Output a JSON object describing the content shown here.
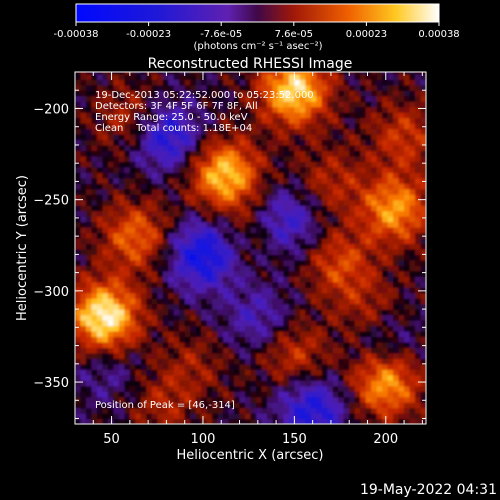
{
  "chart_data": {
    "type": "heatmap",
    "title": "Reconstructed RHESSI Image",
    "xlabel": "Heliocentric X (arcsec)",
    "ylabel": "Heliocentric Y (arcsec)",
    "xlim": [
      30,
      222
    ],
    "ylim": [
      -373,
      -180
    ],
    "x_ticks": [
      50,
      100,
      150,
      200
    ],
    "y_ticks": [
      -200,
      -250,
      -300,
      -350
    ],
    "colorbar": {
      "range": [
        -0.00038,
        0.00038
      ],
      "ticks": [
        "-0.00038",
        "-0.00023",
        "-7.6e-05",
        "7.6e-05",
        "0.00023",
        "0.00038"
      ],
      "label": "(photons cm⁻² s⁻¹ asec⁻²)"
    },
    "annotations": [
      "19-Dec-2013 05:22:52.000 to 05:23:52.000",
      "Detectors: 3F 4F 5F 6F 7F 8F, All",
      "Energy Range: 25.0 - 50.0 keV",
      "Clean    Total counts: 1.18E+04"
    ],
    "peak_text": "Position of Peak = [46,-314]",
    "sources": [
      {
        "x": 46,
        "y": -314,
        "value": 0.00038
      },
      {
        "x": 150,
        "y": -190,
        "value": 0.00034
      },
      {
        "x": 112,
        "y": -236,
        "value": 0.00031
      },
      {
        "x": 63,
        "y": -270,
        "value": 0.0002
      },
      {
        "x": 205,
        "y": -255,
        "value": 0.00026
      },
      {
        "x": 200,
        "y": -350,
        "value": 0.00028
      },
      {
        "x": 175,
        "y": -285,
        "value": 0.00016
      },
      {
        "x": 150,
        "y": -335,
        "value": 0.00014
      },
      {
        "x": 210,
        "y": -215,
        "value": 0.00014
      },
      {
        "x": 60,
        "y": -205,
        "value": 0.00012
      },
      {
        "x": 78,
        "y": -362,
        "value": 0.0001
      },
      {
        "x": 128,
        "y": -268,
        "value": 8e-05
      },
      {
        "x": 95,
        "y": -340,
        "value": 8e-05
      },
      {
        "x": 170,
        "y": -240,
        "value": 0.00011
      },
      {
        "x": 190,
        "y": -310,
        "value": 9e-05
      },
      {
        "x": 100,
        "y": -280,
        "value": -0.00026
      },
      {
        "x": 80,
        "y": -215,
        "value": -0.00022
      },
      {
        "x": 145,
        "y": -262,
        "value": -0.00018
      },
      {
        "x": 160,
        "y": -365,
        "value": -0.00022
      },
      {
        "x": 130,
        "y": -315,
        "value": -0.00012
      },
      {
        "x": 200,
        "y": -330,
        "value": -0.0001
      },
      {
        "x": 48,
        "y": -345,
        "value": -8e-05
      }
    ]
  },
  "footer": {
    "timestamp": "19-May-2022 04:31"
  }
}
